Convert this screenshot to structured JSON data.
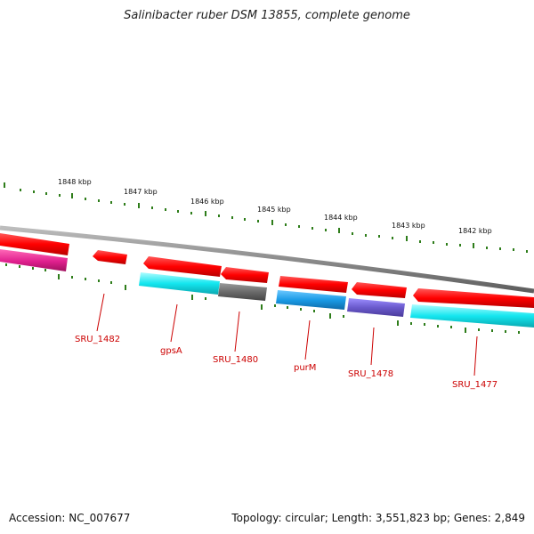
{
  "title": "Salinibacter ruber DSM 13855, complete genome",
  "footer": {
    "accession": "Accession: NC_007677",
    "summary": "Topology: circular; Length: 3,551,823 bp; Genes: 2,849"
  },
  "scale_labels": [
    "1848 kbp",
    "1847 kbp",
    "1846 kbp",
    "1845 kbp",
    "1844 kbp",
    "1843 kbp",
    "1842 kbp"
  ],
  "gene_labels": [
    "SRU_1482",
    "gpsA",
    "SRU_1480",
    "purM",
    "SRU_1478",
    "SRU_1477"
  ],
  "colors": {
    "backbone": "#8c8c8c",
    "tick": "#2e7d1a",
    "strand_gene": "#ff0000",
    "label": "#cc0000",
    "magenta": "#e0208e",
    "cyan": "#14e6ef",
    "gray": "#6b6b6b",
    "blue": "#1a9be6",
    "purple": "#6a5acd"
  }
}
